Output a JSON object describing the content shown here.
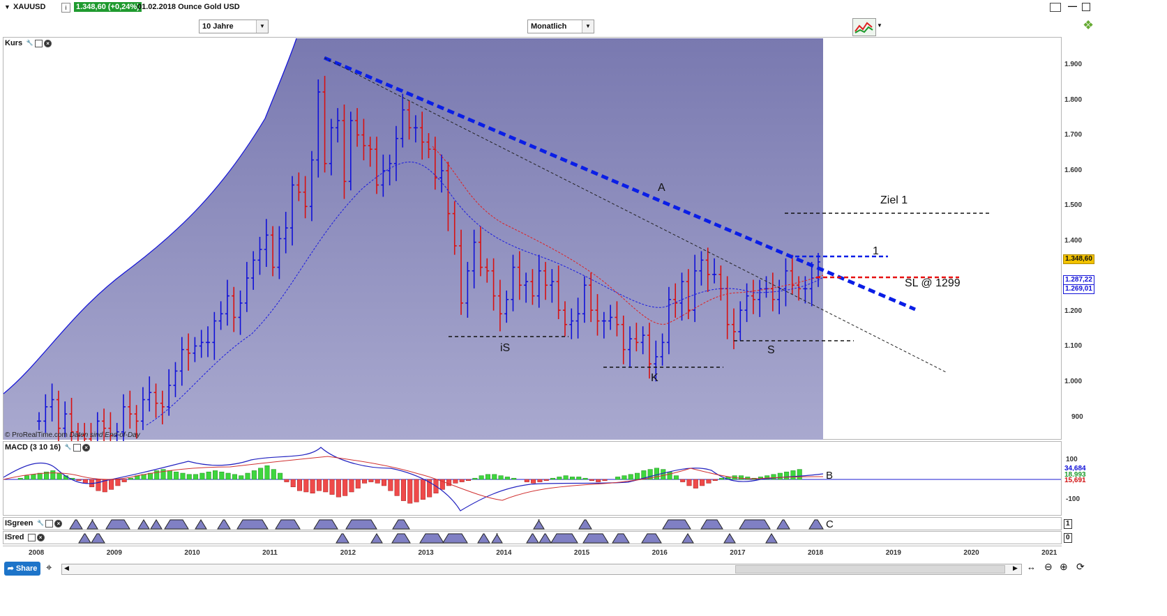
{
  "header": {
    "symbol": "XAUUSD",
    "info_icon": "i",
    "price_badge": "1.348,60 (+0,24%)",
    "date_name": "01.02.2018 Ounce Gold USD",
    "period_select": "10 Jahre",
    "interval_select": "Monatlich"
  },
  "panels": {
    "price_label": "Kurs",
    "macd_label": "MACD (3 10 16)",
    "isgreen_label": "ISgreen",
    "isred_label": "ISred",
    "copyright": "© ProRealTime.com",
    "data_note": "Daten sind End-of-Day"
  },
  "price_axis": {
    "ticks": [
      "1.900",
      "1.800",
      "1.700",
      "1.600",
      "1.500",
      "1.400",
      "1.200",
      "1.100",
      "1.000",
      "900"
    ],
    "last_price": "1.348,60",
    "ma1_value": "1.287,22",
    "ma2_value": "1.269,01",
    "last_price_color": "#f2c200"
  },
  "macd_axis": {
    "ticks": [
      "100",
      "-100"
    ],
    "value1": "34,684",
    "value2": "18,993",
    "value3": "15,691"
  },
  "indicator_axis": {
    "isgreen": "1",
    "isred": "0"
  },
  "annotations": {
    "A": "A",
    "ziel": "Ziel 1",
    "one": "1",
    "sl": "SL @ 1299",
    "iS": "iS",
    "K": "K",
    "S": "S",
    "B": "B",
    "C": "C"
  },
  "bottom": {
    "share": "Share"
  },
  "chart_data": {
    "type": "bar",
    "title": "XAUUSD",
    "interval": "Monatlich",
    "x_labels": [
      "2008",
      "2009",
      "2010",
      "2011",
      "2012",
      "2013",
      "2014",
      "2015",
      "2016",
      "2017",
      "2018",
      "2019",
      "2020",
      "2021"
    ],
    "ylim": [
      850,
      1970
    ],
    "colors": {
      "up": "#1010d8",
      "down": "#d81010",
      "background_band": "#7f7fb5",
      "trendline_A": "#0a1ee6",
      "sl_line": "#e61010"
    },
    "trendline_A": {
      "from": [
        "2011-09",
        1920
      ],
      "to": [
        "2019-04",
        1210
      ]
    },
    "levels": [
      {
        "name": "Ziel 1",
        "value": 1480
      },
      {
        "name": "1",
        "value": 1355
      },
      {
        "name": "SL @ 1299",
        "value": 1299
      },
      {
        "name": "iS",
        "value": 1130
      },
      {
        "name": "S",
        "value": 1118
      },
      {
        "name": "K",
        "value": 1042
      }
    ]
  }
}
